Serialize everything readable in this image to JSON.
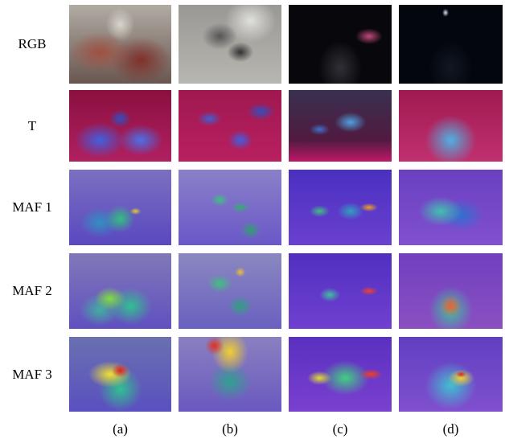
{
  "row_labels": [
    "RGB",
    "T",
    "MAF 1",
    "MAF 2",
    "MAF 3"
  ],
  "column_labels": [
    "(a)",
    "(b)",
    "(c)",
    "(d)"
  ]
}
